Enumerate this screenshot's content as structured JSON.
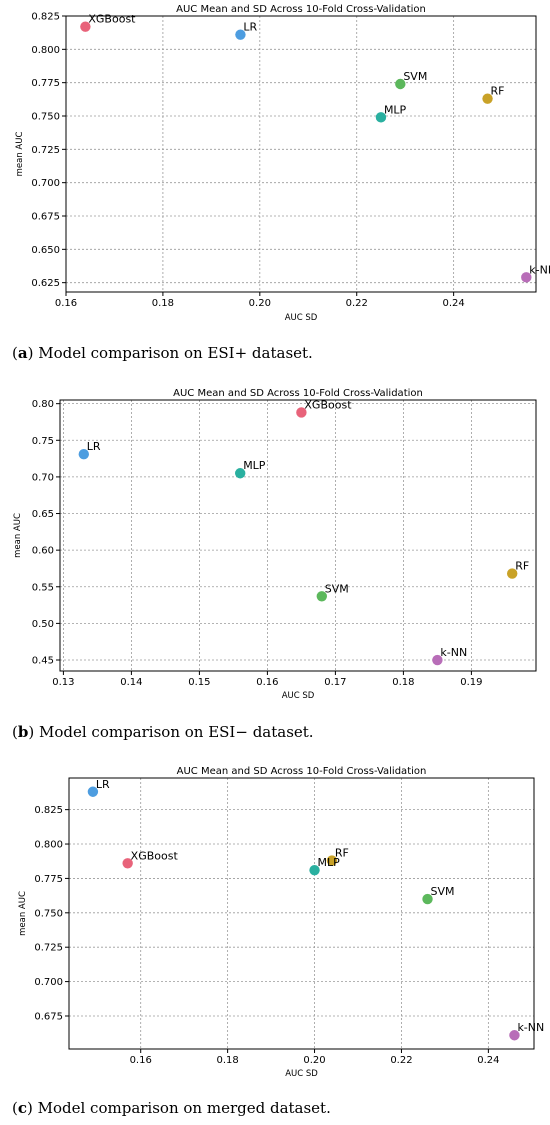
{
  "figures": [
    {
      "caption_letter": "a",
      "caption_text": "Model comparison on ESI+ dataset.",
      "chart_data": {
        "type": "scatter",
        "title": "AUC Mean and SD Across 10-Fold Cross-Validation",
        "xlabel": "AUC SD",
        "ylabel": "mean AUC",
        "xlim": [
          0.16,
          0.257
        ],
        "ylim": [
          0.618,
          0.825
        ],
        "xticks": [
          "0.16",
          "0.18",
          "0.20",
          "0.22",
          "0.24"
        ],
        "xtick_values": [
          0.16,
          0.18,
          0.2,
          0.22,
          0.24
        ],
        "yticks": [
          "0.625",
          "0.650",
          "0.675",
          "0.700",
          "0.725",
          "0.750",
          "0.775",
          "0.800",
          "0.825"
        ],
        "ytick_values": [
          0.625,
          0.65,
          0.675,
          0.7,
          0.725,
          0.75,
          0.775,
          0.8,
          0.825
        ],
        "grid": true,
        "points": [
          {
            "label": "XGBoost",
            "x": 0.164,
            "y": 0.817,
            "color": "#e8637a"
          },
          {
            "label": "LR",
            "x": 0.196,
            "y": 0.811,
            "color": "#4d9de0"
          },
          {
            "label": "SVM",
            "x": 0.229,
            "y": 0.774,
            "color": "#5cb85c"
          },
          {
            "label": "MLP",
            "x": 0.225,
            "y": 0.749,
            "color": "#2ab0a0"
          },
          {
            "label": "RF",
            "x": 0.247,
            "y": 0.763,
            "color": "#c9a227"
          },
          {
            "label": "k-NN",
            "x": 0.255,
            "y": 0.629,
            "color": "#b86db8"
          }
        ]
      }
    },
    {
      "caption_letter": "b",
      "caption_text": "Model comparison on ESI− dataset.",
      "chart_data": {
        "type": "scatter",
        "title": "AUC Mean and SD Across 10-Fold Cross-Validation",
        "xlabel": "AUC SD",
        "ylabel": "mean AUC",
        "xlim": [
          0.1295,
          0.1995
        ],
        "ylim": [
          0.435,
          0.805
        ],
        "xticks": [
          "0.13",
          "0.14",
          "0.15",
          "0.16",
          "0.17",
          "0.18",
          "0.19"
        ],
        "xtick_values": [
          0.13,
          0.14,
          0.15,
          0.16,
          0.17,
          0.18,
          0.19
        ],
        "yticks": [
          "0.45",
          "0.50",
          "0.55",
          "0.60",
          "0.65",
          "0.70",
          "0.75",
          "0.80"
        ],
        "ytick_values": [
          0.45,
          0.5,
          0.55,
          0.6,
          0.65,
          0.7,
          0.75,
          0.8
        ],
        "grid": true,
        "points": [
          {
            "label": "XGBoost",
            "x": 0.165,
            "y": 0.788,
            "color": "#e8637a"
          },
          {
            "label": "LR",
            "x": 0.133,
            "y": 0.731,
            "color": "#4d9de0"
          },
          {
            "label": "MLP",
            "x": 0.156,
            "y": 0.705,
            "color": "#2ab0a0"
          },
          {
            "label": "SVM",
            "x": 0.168,
            "y": 0.537,
            "color": "#5cb85c"
          },
          {
            "label": "RF",
            "x": 0.196,
            "y": 0.568,
            "color": "#c9a227"
          },
          {
            "label": "k-NN",
            "x": 0.185,
            "y": 0.45,
            "color": "#b86db8"
          }
        ]
      }
    },
    {
      "caption_letter": "c",
      "caption_text": "Model comparison on merged dataset.",
      "chart_data": {
        "type": "scatter",
        "title": "AUC Mean and SD Across 10-Fold Cross-Validation",
        "xlabel": "AUC SD",
        "ylabel": "mean AUC",
        "xlim": [
          0.1435,
          0.2505
        ],
        "ylim": [
          0.651,
          0.848
        ],
        "xticks": [
          "0.16",
          "0.18",
          "0.20",
          "0.22",
          "0.24"
        ],
        "xtick_values": [
          0.16,
          0.18,
          0.2,
          0.22,
          0.24
        ],
        "yticks": [
          "0.675",
          "0.700",
          "0.725",
          "0.750",
          "0.775",
          "0.800",
          "0.825"
        ],
        "ytick_values": [
          0.675,
          0.7,
          0.725,
          0.75,
          0.775,
          0.8,
          0.825
        ],
        "grid": true,
        "points": [
          {
            "label": "LR",
            "x": 0.149,
            "y": 0.838,
            "color": "#4d9de0"
          },
          {
            "label": "XGBoost",
            "x": 0.157,
            "y": 0.786,
            "color": "#e8637a"
          },
          {
            "label": "RF",
            "x": 0.204,
            "y": 0.788,
            "color": "#c9a227"
          },
          {
            "label": "MLP",
            "x": 0.2,
            "y": 0.781,
            "color": "#2ab0a0"
          },
          {
            "label": "SVM",
            "x": 0.226,
            "y": 0.76,
            "color": "#5cb85c"
          },
          {
            "label": "k-NN",
            "x": 0.246,
            "y": 0.661,
            "color": "#b86db8"
          }
        ]
      }
    }
  ]
}
